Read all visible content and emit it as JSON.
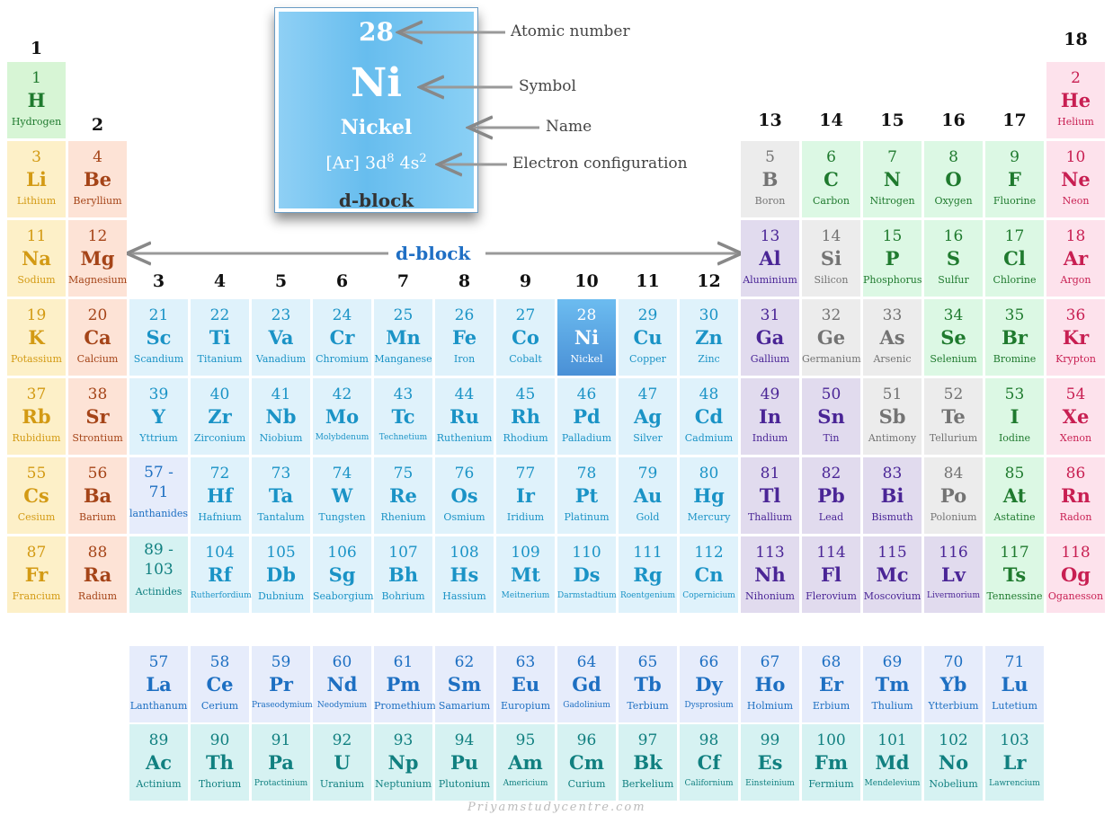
{
  "legend": {
    "atomic_number": "28",
    "symbol": "Ni",
    "name": "Nickel",
    "config_base": "[Ar] 3d",
    "config_sup1": "8",
    "config_mid": " 4s",
    "config_sup2": "2",
    "block": "d-block",
    "callouts": {
      "atomic_number": "Atomic number",
      "symbol": "Symbol",
      "name": "Name",
      "config": "Electron configuration"
    }
  },
  "dblock_label": "d-block",
  "watermark": "Priyamstudycentre.com",
  "colors": {
    "s_alkali": "#fdf0c8",
    "s_alkaline": "#fde3d6",
    "hydrogen": "#d7f5d5",
    "d_block": "#dff2fb",
    "highlight": "#5aa8e0",
    "lanthanide": "#e6ecfb",
    "actinide": "#d6f2f2",
    "nonmetal": "#dcf8e4",
    "metalloid": "#ececec",
    "post_transition": "#e1dbee",
    "noble": "#fde2ec"
  },
  "groups": [
    "1",
    "2",
    "3",
    "4",
    "5",
    "6",
    "7",
    "8",
    "9",
    "10",
    "11",
    "12",
    "13",
    "14",
    "15",
    "16",
    "17",
    "18"
  ],
  "elements": [
    {
      "n": "1",
      "s": "H",
      "name": "Hydrogen",
      "r": 0,
      "c": 0,
      "cat": "hydrogen"
    },
    {
      "n": "2",
      "s": "He",
      "name": "Helium",
      "r": 0,
      "c": 17,
      "cat": "noble"
    },
    {
      "n": "3",
      "s": "Li",
      "name": "Lithium",
      "r": 1,
      "c": 0,
      "cat": "s_alkali"
    },
    {
      "n": "4",
      "s": "Be",
      "name": "Beryllium",
      "r": 1,
      "c": 1,
      "cat": "s_alkaline"
    },
    {
      "n": "5",
      "s": "B",
      "name": "Boron",
      "r": 1,
      "c": 12,
      "cat": "metalloid"
    },
    {
      "n": "6",
      "s": "C",
      "name": "Carbon",
      "r": 1,
      "c": 13,
      "cat": "nonmetal"
    },
    {
      "n": "7",
      "s": "N",
      "name": "Nitrogen",
      "r": 1,
      "c": 14,
      "cat": "nonmetal"
    },
    {
      "n": "8",
      "s": "O",
      "name": "Oxygen",
      "r": 1,
      "c": 15,
      "cat": "nonmetal"
    },
    {
      "n": "9",
      "s": "F",
      "name": "Fluorine",
      "r": 1,
      "c": 16,
      "cat": "nonmetal"
    },
    {
      "n": "10",
      "s": "Ne",
      "name": "Neon",
      "r": 1,
      "c": 17,
      "cat": "noble"
    },
    {
      "n": "11",
      "s": "Na",
      "name": "Sodium",
      "r": 2,
      "c": 0,
      "cat": "s_alkali"
    },
    {
      "n": "12",
      "s": "Mg",
      "name": "Magnesium",
      "r": 2,
      "c": 1,
      "cat": "s_alkaline"
    },
    {
      "n": "13",
      "s": "Al",
      "name": "Aluminium",
      "r": 2,
      "c": 12,
      "cat": "post_transition"
    },
    {
      "n": "14",
      "s": "Si",
      "name": "Silicon",
      "r": 2,
      "c": 13,
      "cat": "metalloid"
    },
    {
      "n": "15",
      "s": "P",
      "name": "Phosphorus",
      "r": 2,
      "c": 14,
      "cat": "nonmetal"
    },
    {
      "n": "16",
      "s": "S",
      "name": "Sulfur",
      "r": 2,
      "c": 15,
      "cat": "nonmetal"
    },
    {
      "n": "17",
      "s": "Cl",
      "name": "Chlorine",
      "r": 2,
      "c": 16,
      "cat": "nonmetal"
    },
    {
      "n": "18",
      "s": "Ar",
      "name": "Argon",
      "r": 2,
      "c": 17,
      "cat": "noble"
    },
    {
      "n": "19",
      "s": "K",
      "name": "Potassium",
      "r": 3,
      "c": 0,
      "cat": "s_alkali"
    },
    {
      "n": "20",
      "s": "Ca",
      "name": "Calcium",
      "r": 3,
      "c": 1,
      "cat": "s_alkaline"
    },
    {
      "n": "21",
      "s": "Sc",
      "name": "Scandium",
      "r": 3,
      "c": 2,
      "cat": "d_block"
    },
    {
      "n": "22",
      "s": "Ti",
      "name": "Titanium",
      "r": 3,
      "c": 3,
      "cat": "d_block"
    },
    {
      "n": "23",
      "s": "Va",
      "name": "Vanadium",
      "r": 3,
      "c": 4,
      "cat": "d_block"
    },
    {
      "n": "24",
      "s": "Cr",
      "name": "Chromium",
      "r": 3,
      "c": 5,
      "cat": "d_block"
    },
    {
      "n": "25",
      "s": "Mn",
      "name": "Manganese",
      "r": 3,
      "c": 6,
      "cat": "d_block"
    },
    {
      "n": "26",
      "s": "Fe",
      "name": "Iron",
      "r": 3,
      "c": 7,
      "cat": "d_block"
    },
    {
      "n": "27",
      "s": "Co",
      "name": "Cobalt",
      "r": 3,
      "c": 8,
      "cat": "d_block"
    },
    {
      "n": "28",
      "s": "Ni",
      "name": "Nickel",
      "r": 3,
      "c": 9,
      "cat": "highlight"
    },
    {
      "n": "29",
      "s": "Cu",
      "name": "Copper",
      "r": 3,
      "c": 10,
      "cat": "d_block"
    },
    {
      "n": "30",
      "s": "Zn",
      "name": "Zinc",
      "r": 3,
      "c": 11,
      "cat": "d_block"
    },
    {
      "n": "31",
      "s": "Ga",
      "name": "Gallium",
      "r": 3,
      "c": 12,
      "cat": "post_transition"
    },
    {
      "n": "32",
      "s": "Ge",
      "name": "Germanium",
      "r": 3,
      "c": 13,
      "cat": "metalloid"
    },
    {
      "n": "33",
      "s": "As",
      "name": "Arsenic",
      "r": 3,
      "c": 14,
      "cat": "metalloid"
    },
    {
      "n": "34",
      "s": "Se",
      "name": "Selenium",
      "r": 3,
      "c": 15,
      "cat": "nonmetal"
    },
    {
      "n": "35",
      "s": "Br",
      "name": "Bromine",
      "r": 3,
      "c": 16,
      "cat": "nonmetal"
    },
    {
      "n": "36",
      "s": "Kr",
      "name": "Krypton",
      "r": 3,
      "c": 17,
      "cat": "noble"
    },
    {
      "n": "37",
      "s": "Rb",
      "name": "Rubidium",
      "r": 4,
      "c": 0,
      "cat": "s_alkali"
    },
    {
      "n": "38",
      "s": "Sr",
      "name": "Strontium",
      "r": 4,
      "c": 1,
      "cat": "s_alkaline"
    },
    {
      "n": "39",
      "s": "Y",
      "name": "Yttrium",
      "r": 4,
      "c": 2,
      "cat": "d_block"
    },
    {
      "n": "40",
      "s": "Zr",
      "name": "Zirconium",
      "r": 4,
      "c": 3,
      "cat": "d_block"
    },
    {
      "n": "41",
      "s": "Nb",
      "name": "Niobium",
      "r": 4,
      "c": 4,
      "cat": "d_block"
    },
    {
      "n": "42",
      "s": "Mo",
      "name": "Molybdenum",
      "r": 4,
      "c": 5,
      "cat": "d_block",
      "small": true
    },
    {
      "n": "43",
      "s": "Tc",
      "name": "Technetium",
      "r": 4,
      "c": 6,
      "cat": "d_block",
      "small": true
    },
    {
      "n": "44",
      "s": "Ru",
      "name": "Ruthenium",
      "r": 4,
      "c": 7,
      "cat": "d_block"
    },
    {
      "n": "45",
      "s": "Rh",
      "name": "Rhodium",
      "r": 4,
      "c": 8,
      "cat": "d_block"
    },
    {
      "n": "46",
      "s": "Pd",
      "name": "Palladium",
      "r": 4,
      "c": 9,
      "cat": "d_block"
    },
    {
      "n": "47",
      "s": "Ag",
      "name": "Silver",
      "r": 4,
      "c": 10,
      "cat": "d_block"
    },
    {
      "n": "48",
      "s": "Cd",
      "name": "Cadmium",
      "r": 4,
      "c": 11,
      "cat": "d_block"
    },
    {
      "n": "49",
      "s": "In",
      "name": "Indium",
      "r": 4,
      "c": 12,
      "cat": "post_transition"
    },
    {
      "n": "50",
      "s": "Sn",
      "name": "Tin",
      "r": 4,
      "c": 13,
      "cat": "post_transition"
    },
    {
      "n": "51",
      "s": "Sb",
      "name": "Antimony",
      "r": 4,
      "c": 14,
      "cat": "metalloid"
    },
    {
      "n": "52",
      "s": "Te",
      "name": "Tellurium",
      "r": 4,
      "c": 15,
      "cat": "metalloid"
    },
    {
      "n": "53",
      "s": "I",
      "name": "Iodine",
      "r": 4,
      "c": 16,
      "cat": "nonmetal"
    },
    {
      "n": "54",
      "s": "Xe",
      "name": "Xenon",
      "r": 4,
      "c": 17,
      "cat": "noble"
    },
    {
      "n": "55",
      "s": "Cs",
      "name": "Cesium",
      "r": 5,
      "c": 0,
      "cat": "s_alkali"
    },
    {
      "n": "56",
      "s": "Ba",
      "name": "Barium",
      "r": 5,
      "c": 1,
      "cat": "s_alkaline"
    },
    {
      "n": "57 - 71",
      "s": "",
      "name": "lanthanides",
      "r": 5,
      "c": 2,
      "cat": "lanthanide",
      "range": true
    },
    {
      "n": "72",
      "s": "Hf",
      "name": "Hafnium",
      "r": 5,
      "c": 3,
      "cat": "d_block"
    },
    {
      "n": "73",
      "s": "Ta",
      "name": "Tantalum",
      "r": 5,
      "c": 4,
      "cat": "d_block"
    },
    {
      "n": "74",
      "s": "W",
      "name": "Tungsten",
      "r": 5,
      "c": 5,
      "cat": "d_block"
    },
    {
      "n": "75",
      "s": "Re",
      "name": "Rhenium",
      "r": 5,
      "c": 6,
      "cat": "d_block"
    },
    {
      "n": "76",
      "s": "Os",
      "name": "Osmium",
      "r": 5,
      "c": 7,
      "cat": "d_block"
    },
    {
      "n": "77",
      "s": "Ir",
      "name": "Iridium",
      "r": 5,
      "c": 8,
      "cat": "d_block"
    },
    {
      "n": "78",
      "s": "Pt",
      "name": "Platinum",
      "r": 5,
      "c": 9,
      "cat": "d_block"
    },
    {
      "n": "79",
      "s": "Au",
      "name": "Gold",
      "r": 5,
      "c": 10,
      "cat": "d_block"
    },
    {
      "n": "80",
      "s": "Hg",
      "name": "Mercury",
      "r": 5,
      "c": 11,
      "cat": "d_block"
    },
    {
      "n": "81",
      "s": "Tl",
      "name": "Thallium",
      "r": 5,
      "c": 12,
      "cat": "post_transition"
    },
    {
      "n": "82",
      "s": "Pb",
      "name": "Lead",
      "r": 5,
      "c": 13,
      "cat": "post_transition"
    },
    {
      "n": "83",
      "s": "Bi",
      "name": "Bismuth",
      "r": 5,
      "c": 14,
      "cat": "post_transition"
    },
    {
      "n": "84",
      "s": "Po",
      "name": "Polonium",
      "r": 5,
      "c": 15,
      "cat": "metalloid"
    },
    {
      "n": "85",
      "s": "At",
      "name": "Astatine",
      "r": 5,
      "c": 16,
      "cat": "nonmetal"
    },
    {
      "n": "86",
      "s": "Rn",
      "name": "Radon",
      "r": 5,
      "c": 17,
      "cat": "noble"
    },
    {
      "n": "87",
      "s": "Fr",
      "name": "Francium",
      "r": 6,
      "c": 0,
      "cat": "s_alkali"
    },
    {
      "n": "88",
      "s": "Ra",
      "name": "Radium",
      "r": 6,
      "c": 1,
      "cat": "s_alkaline"
    },
    {
      "n": "89 - 103",
      "s": "",
      "name": "Actinides",
      "r": 6,
      "c": 2,
      "cat": "actinide",
      "range": true
    },
    {
      "n": "104",
      "s": "Rf",
      "name": "Rutherfordium",
      "r": 6,
      "c": 3,
      "cat": "d_block",
      "small": true
    },
    {
      "n": "105",
      "s": "Db",
      "name": "Dubnium",
      "r": 6,
      "c": 4,
      "cat": "d_block"
    },
    {
      "n": "106",
      "s": "Sg",
      "name": "Seaborgium",
      "r": 6,
      "c": 5,
      "cat": "d_block"
    },
    {
      "n": "107",
      "s": "Bh",
      "name": "Bohrium",
      "r": 6,
      "c": 6,
      "cat": "d_block"
    },
    {
      "n": "108",
      "s": "Hs",
      "name": "Hassium",
      "r": 6,
      "c": 7,
      "cat": "d_block"
    },
    {
      "n": "109",
      "s": "Mt",
      "name": "Meitnerium",
      "r": 6,
      "c": 8,
      "cat": "d_block",
      "small": true
    },
    {
      "n": "110",
      "s": "Ds",
      "name": "Darmstadtium",
      "r": 6,
      "c": 9,
      "cat": "d_block",
      "small": true
    },
    {
      "n": "111",
      "s": "Rg",
      "name": "Roentgenium",
      "r": 6,
      "c": 10,
      "cat": "d_block",
      "small": true
    },
    {
      "n": "112",
      "s": "Cn",
      "name": "Copernicium",
      "r": 6,
      "c": 11,
      "cat": "d_block",
      "small": true
    },
    {
      "n": "113",
      "s": "Nh",
      "name": "Nihonium",
      "r": 6,
      "c": 12,
      "cat": "post_transition"
    },
    {
      "n": "114",
      "s": "Fl",
      "name": "Flerovium",
      "r": 6,
      "c": 13,
      "cat": "post_transition"
    },
    {
      "n": "115",
      "s": "Mc",
      "name": "Moscovium",
      "r": 6,
      "c": 14,
      "cat": "post_transition"
    },
    {
      "n": "116",
      "s": "Lv",
      "name": "Livermorium",
      "r": 6,
      "c": 15,
      "cat": "post_transition",
      "small": true
    },
    {
      "n": "117",
      "s": "Ts",
      "name": "Tennessine",
      "r": 6,
      "c": 16,
      "cat": "nonmetal"
    },
    {
      "n": "118",
      "s": "Og",
      "name": "Oganesson",
      "r": 6,
      "c": 17,
      "cat": "noble"
    },
    {
      "n": "57",
      "s": "La",
      "name": "Lanthanum",
      "r": 8,
      "c": 2,
      "cat": "lanthanide"
    },
    {
      "n": "58",
      "s": "Ce",
      "name": "Cerium",
      "r": 8,
      "c": 3,
      "cat": "lanthanide"
    },
    {
      "n": "59",
      "s": "Pr",
      "name": "Praseodymium",
      "r": 8,
      "c": 4,
      "cat": "lanthanide",
      "small": true
    },
    {
      "n": "60",
      "s": "Nd",
      "name": "Neodymium",
      "r": 8,
      "c": 5,
      "cat": "lanthanide",
      "small": true
    },
    {
      "n": "61",
      "s": "Pm",
      "name": "Promethium",
      "r": 8,
      "c": 6,
      "cat": "lanthanide"
    },
    {
      "n": "62",
      "s": "Sm",
      "name": "Samarium",
      "r": 8,
      "c": 7,
      "cat": "lanthanide"
    },
    {
      "n": "63",
      "s": "Eu",
      "name": "Europium",
      "r": 8,
      "c": 8,
      "cat": "lanthanide"
    },
    {
      "n": "64",
      "s": "Gd",
      "name": "Gadolinium",
      "r": 8,
      "c": 9,
      "cat": "lanthanide",
      "small": true
    },
    {
      "n": "65",
      "s": "Tb",
      "name": "Terbium",
      "r": 8,
      "c": 10,
      "cat": "lanthanide"
    },
    {
      "n": "66",
      "s": "Dy",
      "name": "Dysprosium",
      "r": 8,
      "c": 11,
      "cat": "lanthanide",
      "small": true
    },
    {
      "n": "67",
      "s": "Ho",
      "name": "Holmium",
      "r": 8,
      "c": 12,
      "cat": "lanthanide"
    },
    {
      "n": "68",
      "s": "Er",
      "name": "Erbium",
      "r": 8,
      "c": 13,
      "cat": "lanthanide"
    },
    {
      "n": "69",
      "s": "Tm",
      "name": "Thulium",
      "r": 8,
      "c": 14,
      "cat": "lanthanide"
    },
    {
      "n": "70",
      "s": "Yb",
      "name": "Ytterbium",
      "r": 8,
      "c": 15,
      "cat": "lanthanide"
    },
    {
      "n": "71",
      "s": "Lu",
      "name": "Lutetium",
      "r": 8,
      "c": 16,
      "cat": "lanthanide"
    },
    {
      "n": "89",
      "s": "Ac",
      "name": "Actinium",
      "r": 9,
      "c": 2,
      "cat": "actinide"
    },
    {
      "n": "90",
      "s": "Th",
      "name": "Thorium",
      "r": 9,
      "c": 3,
      "cat": "actinide"
    },
    {
      "n": "91",
      "s": "Pa",
      "name": "Protactinium",
      "r": 9,
      "c": 4,
      "cat": "actinide",
      "small": true
    },
    {
      "n": "92",
      "s": "U",
      "name": "Uranium",
      "r": 9,
      "c": 5,
      "cat": "actinide"
    },
    {
      "n": "93",
      "s": "Np",
      "name": "Neptunium",
      "r": 9,
      "c": 6,
      "cat": "actinide"
    },
    {
      "n": "94",
      "s": "Pu",
      "name": "Plutonium",
      "r": 9,
      "c": 7,
      "cat": "actinide"
    },
    {
      "n": "95",
      "s": "Am",
      "name": "Americium",
      "r": 9,
      "c": 8,
      "cat": "actinide",
      "small": true
    },
    {
      "n": "96",
      "s": "Cm",
      "name": "Curium",
      "r": 9,
      "c": 9,
      "cat": "actinide"
    },
    {
      "n": "97",
      "s": "Bk",
      "name": "Berkelium",
      "r": 9,
      "c": 10,
      "cat": "actinide"
    },
    {
      "n": "98",
      "s": "Cf",
      "name": "Californium",
      "r": 9,
      "c": 11,
      "cat": "actinide",
      "small": true
    },
    {
      "n": "99",
      "s": "Es",
      "name": "Einsteinium",
      "r": 9,
      "c": 12,
      "cat": "actinide",
      "small": true
    },
    {
      "n": "100",
      "s": "Fm",
      "name": "Fermium",
      "r": 9,
      "c": 13,
      "cat": "actinide"
    },
    {
      "n": "101",
      "s": "Md",
      "name": "Mendelevium",
      "r": 9,
      "c": 14,
      "cat": "actinide",
      "small": true
    },
    {
      "n": "102",
      "s": "No",
      "name": "Nobelium",
      "r": 9,
      "c": 15,
      "cat": "actinide"
    },
    {
      "n": "103",
      "s": "Lr",
      "name": "Lawrencium",
      "r": 9,
      "c": 16,
      "cat": "actinide",
      "small": true
    }
  ]
}
